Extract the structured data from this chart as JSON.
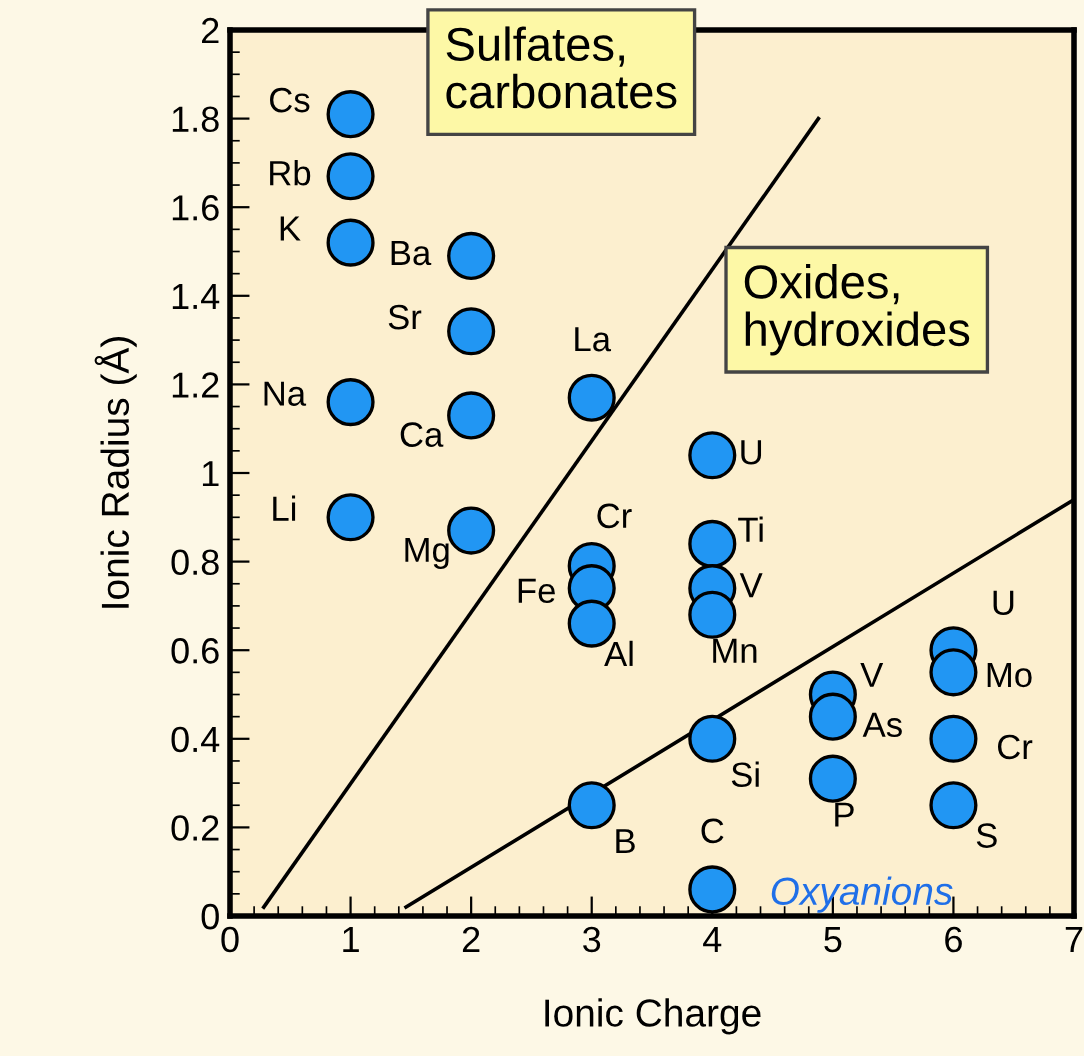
{
  "chart_data": {
    "type": "scatter",
    "xlabel": "Ionic Charge",
    "ylabel": "Ionic Radius (Å)",
    "xlim": [
      0,
      7
    ],
    "ylim": [
      0,
      2
    ],
    "xticks": [
      0,
      1,
      2,
      3,
      4,
      5,
      6,
      7
    ],
    "yticks": [
      0,
      0.2,
      0.4,
      0.6,
      0.8,
      1,
      1.2,
      1.4,
      1.6,
      1.8,
      2
    ],
    "grid": false,
    "legend": false,
    "series": [
      {
        "color": "#2196f3",
        "marker": "circle",
        "x": [
          1,
          1,
          1,
          1,
          1,
          2,
          2,
          2,
          2,
          3,
          3,
          3,
          3,
          3,
          4,
          4,
          4,
          4,
          4,
          4,
          5,
          5,
          5,
          6,
          6,
          6,
          6
        ],
        "values": [
          1.81,
          1.67,
          1.52,
          1.16,
          0.9,
          1.49,
          1.32,
          1.13,
          0.87,
          1.17,
          0.79,
          0.74,
          0.66,
          0.25,
          1.04,
          0.84,
          0.74,
          0.68,
          0.4,
          0.06,
          0.5,
          0.45,
          0.31,
          0.6,
          0.55,
          0.4,
          0.25
        ]
      },
      {
        "type": "line",
        "marker": "none",
        "color": "#000000",
        "x": [
          0.28,
          4.88
        ],
        "values": [
          0.02,
          1.8
        ]
      },
      {
        "type": "line",
        "marker": "none",
        "color": "#000000",
        "x": [
          1.46,
          7
        ],
        "values": [
          0.02,
          0.94
        ]
      }
    ],
    "annotations": [
      {
        "text": "Cs",
        "x": 1,
        "y": 1.81
      },
      {
        "text": "Rb",
        "x": 1,
        "y": 1.67
      },
      {
        "text": "K",
        "x": 1,
        "y": 1.52
      },
      {
        "text": "Na",
        "x": 1,
        "y": 1.16
      },
      {
        "text": "Li",
        "x": 1,
        "y": 0.9
      },
      {
        "text": "Ba",
        "x": 2,
        "y": 1.49
      },
      {
        "text": "Sr",
        "x": 2,
        "y": 1.32
      },
      {
        "text": "Ca",
        "x": 2,
        "y": 1.13
      },
      {
        "text": "Mg",
        "x": 2,
        "y": 0.87
      },
      {
        "text": "La",
        "x": 3,
        "y": 1.17
      },
      {
        "text": "Cr",
        "x": 3,
        "y": 0.79
      },
      {
        "text": "Fe",
        "x": 3,
        "y": 0.74
      },
      {
        "text": "Al",
        "x": 3,
        "y": 0.66
      },
      {
        "text": "B",
        "x": 3,
        "y": 0.25
      },
      {
        "text": "U",
        "x": 4,
        "y": 1.04
      },
      {
        "text": "Ti",
        "x": 4,
        "y": 0.84
      },
      {
        "text": "V",
        "x": 4,
        "y": 0.74
      },
      {
        "text": "Mn",
        "x": 4,
        "y": 0.68
      },
      {
        "text": "Si",
        "x": 4,
        "y": 0.4
      },
      {
        "text": "C",
        "x": 4,
        "y": 0.06
      },
      {
        "text": "V",
        "x": 5,
        "y": 0.5
      },
      {
        "text": "As",
        "x": 5,
        "y": 0.45
      },
      {
        "text": "P",
        "x": 5,
        "y": 0.31
      },
      {
        "text": "U",
        "x": 6,
        "y": 0.6
      },
      {
        "text": "Mo",
        "x": 6,
        "y": 0.55
      },
      {
        "text": "Cr",
        "x": 6,
        "y": 0.4
      },
      {
        "text": "S",
        "x": 6,
        "y": 0.25
      },
      "Sulfates,\ncarbonates",
      "Oxides,\nhydroxides",
      "Oxyanions"
    ]
  }
}
